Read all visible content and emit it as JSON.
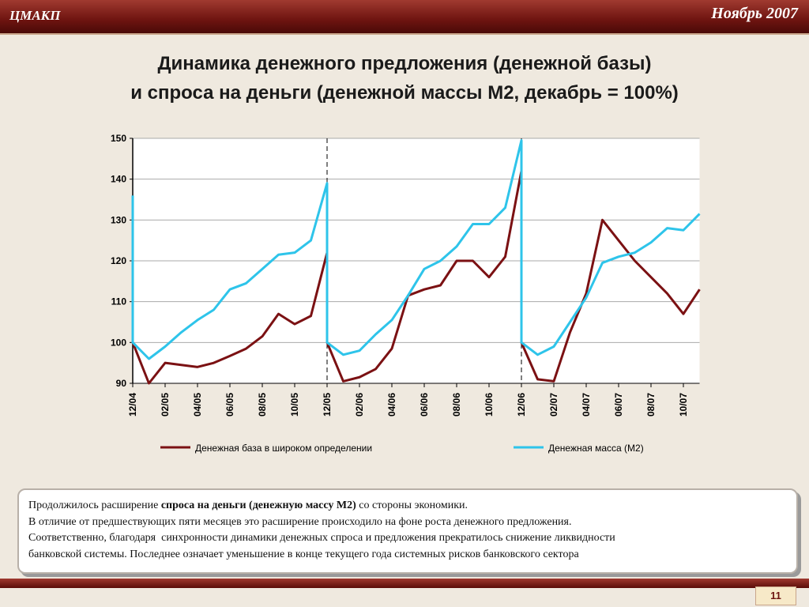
{
  "header": {
    "org": "ЦМАКП",
    "date": "Ноябрь 2007"
  },
  "chart_data": {
    "type": "line",
    "title": [
      "Динамика денежного предложения (денежной базы)",
      "и спроса на деньги (денежной массы М2, декабрь = 100%)"
    ],
    "x": [
      0,
      0,
      1,
      2,
      3,
      4,
      5,
      6,
      7,
      8,
      9,
      10,
      11,
      12,
      12,
      13,
      14,
      15,
      16,
      17,
      18,
      19,
      20,
      21,
      22,
      23,
      24,
      24,
      25,
      26,
      27,
      28,
      29,
      30,
      31,
      32,
      33,
      34,
      35
    ],
    "xlim": [
      0,
      35
    ],
    "xticks": [
      {
        "value": 0,
        "label": "12/04"
      },
      {
        "value": 2,
        "label": "02/05"
      },
      {
        "value": 4,
        "label": "04/05"
      },
      {
        "value": 6,
        "label": "06/05"
      },
      {
        "value": 8,
        "label": "08/05"
      },
      {
        "value": 10,
        "label": "10/05"
      },
      {
        "value": 12,
        "label": "12/05"
      },
      {
        "value": 14,
        "label": "02/06"
      },
      {
        "value": 16,
        "label": "04/06"
      },
      {
        "value": 18,
        "label": "06/06"
      },
      {
        "value": 20,
        "label": "08/06"
      },
      {
        "value": 22,
        "label": "10/06"
      },
      {
        "value": 24,
        "label": "12/06"
      },
      {
        "value": 26,
        "label": "02/07"
      },
      {
        "value": 28,
        "label": "04/07"
      },
      {
        "value": 30,
        "label": "06/07"
      },
      {
        "value": 32,
        "label": "08/07"
      },
      {
        "value": 34,
        "label": "10/07"
      }
    ],
    "ylim": [
      90,
      150
    ],
    "yticks": [
      90,
      100,
      110,
      120,
      130,
      140,
      150
    ],
    "grid": true,
    "series": [
      {
        "name": "Денежная база в широком определении",
        "color": "#7b1113",
        "values": [
          null,
          100,
          90,
          95,
          94.5,
          94,
          95,
          96.7,
          98.5,
          101.5,
          107,
          104.5,
          106.5,
          122,
          100,
          90.5,
          91.5,
          93.5,
          98.5,
          111.5,
          113,
          114,
          120,
          120,
          116,
          121,
          142,
          100,
          91,
          90.5,
          102.5,
          112,
          130,
          125,
          120,
          116,
          112,
          107,
          113
        ]
      },
      {
        "name": "Денежная масса (М2)",
        "color": "#2ec4ea",
        "values": [
          136,
          100,
          96,
          99,
          102.5,
          105.5,
          108,
          113,
          114.5,
          118,
          121.5,
          122,
          125,
          139,
          100,
          97,
          98,
          102,
          105.5,
          111.5,
          118,
          120,
          123.5,
          129,
          129,
          133,
          149.5,
          100,
          97,
          99,
          105,
          111,
          119.5,
          121,
          122,
          124.5,
          128,
          127.5,
          131.5
        ]
      }
    ]
  },
  "note": {
    "lines": [
      [
        {
          "text": "Продолжилось расширение "
        },
        {
          "text": "спроса на деньги (денежную массу М2)",
          "bold": true
        },
        {
          "text": " со стороны экономики."
        }
      ],
      [
        {
          "text": "В отличие от предшествующих пяти месяцев это расширение происходило на фоне роста денежного предложения."
        }
      ],
      [
        {
          "text": "Соответственно, благодаря  синхронности динамики денежных спроса и предложения прекратилось снижение ликвидности"
        }
      ],
      [
        {
          "text": "банковской системы. Последнее означает уменьшение в конце текущего года системных рисков банковского сектора"
        }
      ]
    ]
  },
  "page": "11"
}
